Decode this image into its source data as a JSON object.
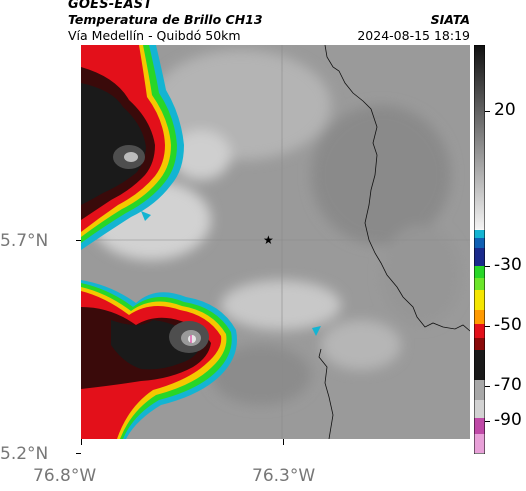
{
  "header": {
    "satellite": "GOES-EAST",
    "product": "Temperatura de Brillo CH13",
    "region": "Vía Medellín - Quibdó 50km",
    "agency": "SIATA",
    "timestamp": "2024-08-15 18:19"
  },
  "axes": {
    "lat_labels": [
      "5.7°N",
      "5.2°N"
    ],
    "lon_labels": [
      "76.8°W",
      "76.3°W"
    ]
  },
  "colorbar": {
    "ticks": [
      "20",
      "-30",
      "-50",
      "-70",
      "-90"
    ]
  },
  "map": {
    "marker_icon": "star-icon",
    "colors": {
      "background_gray": "#9e9e9e",
      "border_line": "#111111",
      "cold_core": "#1a1a1a",
      "red": "#e3101a",
      "green": "#28d628",
      "cyan": "#14b4d2"
    }
  }
}
